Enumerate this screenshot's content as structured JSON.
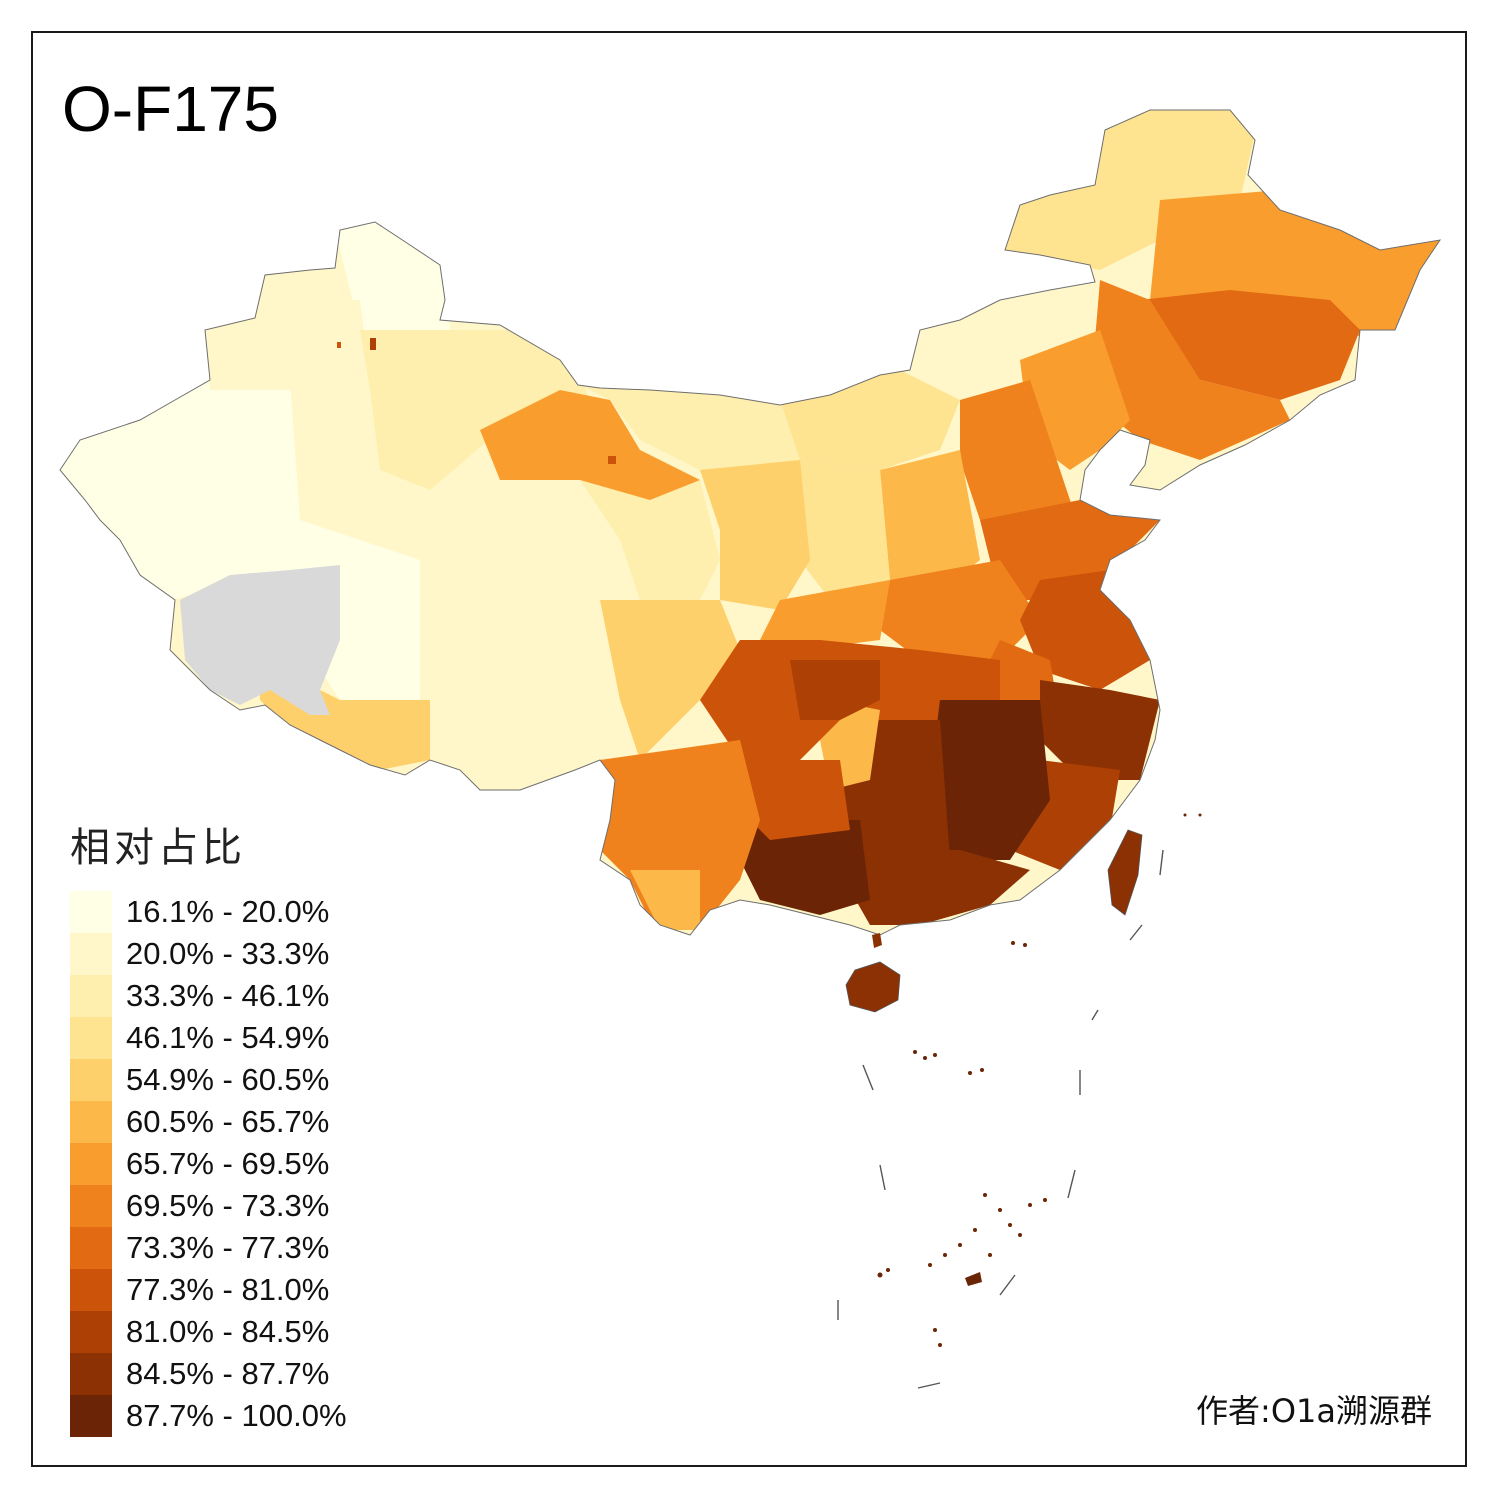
{
  "title": "O-F175",
  "legend": {
    "title": "相对占比",
    "items": [
      {
        "label": "16.1% - 20.0%",
        "color": "#ffffe5"
      },
      {
        "label": "20.0% - 33.3%",
        "color": "#fff7c9"
      },
      {
        "label": "33.3% - 46.1%",
        "color": "#feefae"
      },
      {
        "label": "46.1% - 54.9%",
        "color": "#fee391"
      },
      {
        "label": "54.9% - 60.5%",
        "color": "#fed06c"
      },
      {
        "label": "60.5% - 65.7%",
        "color": "#fdb84a"
      },
      {
        "label": "65.7% - 69.5%",
        "color": "#f99d2f"
      },
      {
        "label": "69.5% - 73.3%",
        "color": "#f0821e"
      },
      {
        "label": "73.3% - 77.3%",
        "color": "#e26a12"
      },
      {
        "label": "77.3% - 81.0%",
        "color": "#cc540a"
      },
      {
        "label": "81.0% - 84.5%",
        "color": "#ad4005"
      },
      {
        "label": "84.5% - 87.7%",
        "color": "#8c3104"
      },
      {
        "label": "87.7% - 100.0%",
        "color": "#6b2506"
      }
    ]
  },
  "no_data_color": "#d9d9d9",
  "credit": "作者:O1a溯源群"
}
